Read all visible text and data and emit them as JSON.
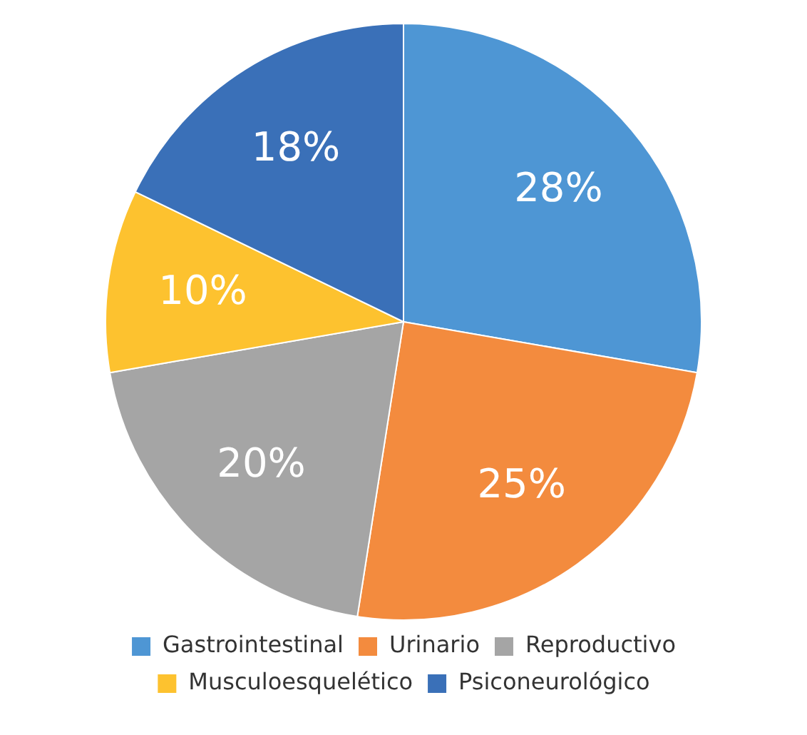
{
  "chart_data": {
    "type": "pie",
    "categories": [
      "Gastrointestinal",
      "Urinario",
      "Reproductivo",
      "Musculoesquelético",
      "Psiconeurológico"
    ],
    "values": [
      28,
      25,
      20,
      10,
      18
    ],
    "colors": [
      "#4e96d4",
      "#f38b3e",
      "#a5a5a5",
      "#fdc22f",
      "#3a70b8"
    ],
    "value_labels": [
      "28%",
      "25%",
      "20%",
      "10%",
      "18%"
    ],
    "legend": "bottom"
  }
}
